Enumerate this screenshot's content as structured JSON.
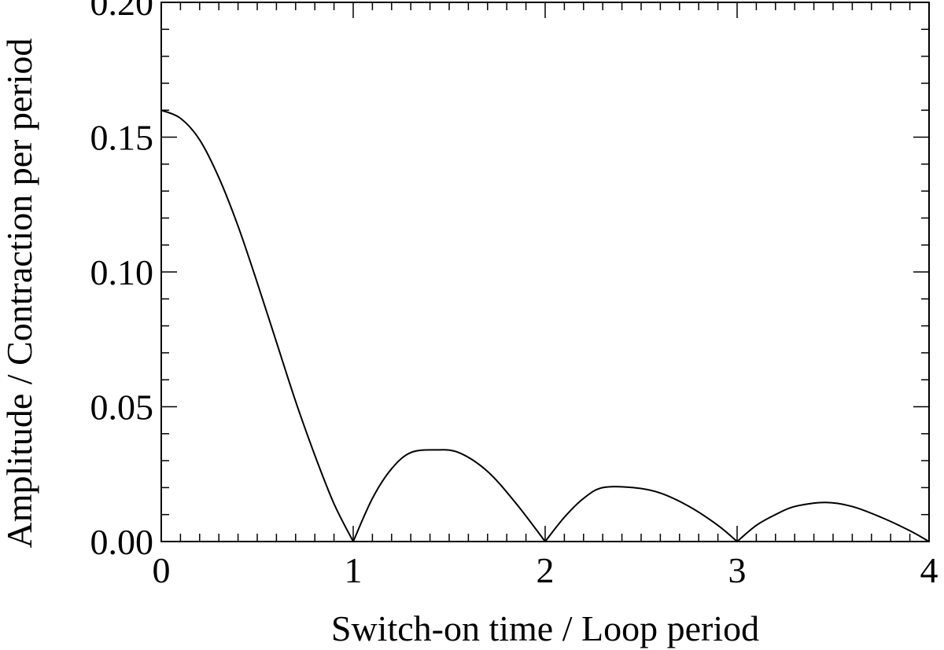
{
  "chart_data": {
    "type": "line",
    "title": "",
    "xlabel": "Switch-on time / Loop period",
    "ylabel": "Amplitude / Contraction per period",
    "xlim": [
      0,
      4
    ],
    "ylim": [
      0,
      0.2
    ],
    "x_ticks": [
      0,
      1,
      2,
      3,
      4
    ],
    "x_tick_labels": [
      "0",
      "1",
      "2",
      "3",
      "4"
    ],
    "y_ticks": [
      0,
      0.05,
      0.1,
      0.15,
      0.2
    ],
    "y_tick_labels": [
      "0.00",
      "0.05",
      "0.10",
      "0.15",
      "0.20"
    ],
    "x_minor_step": 0.1,
    "y_minor_step": 0.01,
    "grid": false,
    "line_color": "#000000",
    "series": [
      {
        "x": [
          0,
          0.1,
          0.2,
          0.3,
          0.4,
          0.5,
          0.6,
          0.7,
          0.8,
          0.9,
          1.0,
          1.1,
          1.2,
          1.3,
          1.43,
          1.55,
          1.7,
          1.85,
          2.0,
          2.1,
          2.2,
          2.3,
          2.46,
          2.6,
          2.75,
          2.9,
          3.0,
          3.1,
          3.2,
          3.3,
          3.46,
          3.6,
          3.75,
          3.9,
          4.0
        ],
        "y": [
          0.16,
          0.157,
          0.149,
          0.135,
          0.117,
          0.096,
          0.074,
          0.052,
          0.032,
          0.014,
          0.0,
          0.016,
          0.027,
          0.033,
          0.034,
          0.033,
          0.026,
          0.014,
          0.0,
          0.009,
          0.016,
          0.02,
          0.02,
          0.018,
          0.013,
          0.006,
          0.0,
          0.006,
          0.01,
          0.013,
          0.0145,
          0.013,
          0.009,
          0.004,
          0.0
        ]
      }
    ]
  }
}
